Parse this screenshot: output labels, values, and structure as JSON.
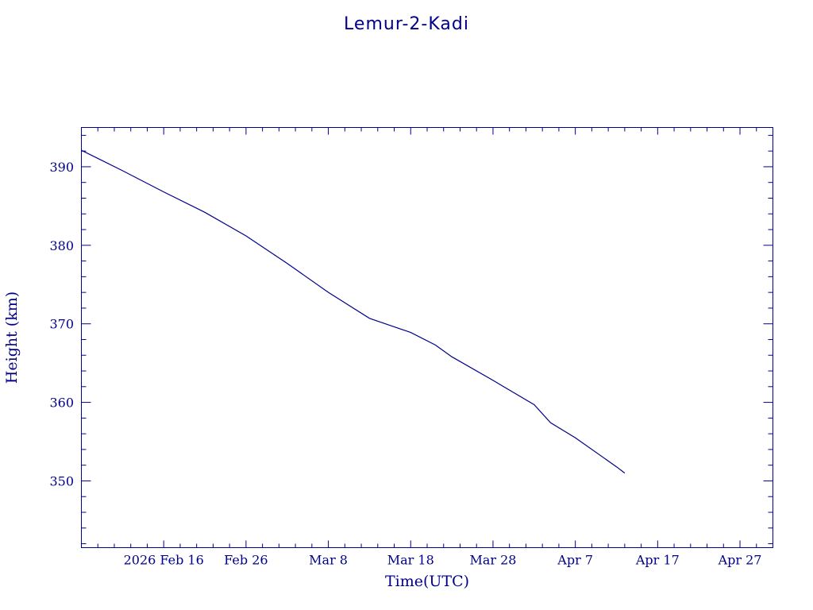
{
  "chart_data": {
    "type": "line",
    "title": "Lemur-2-Kadi",
    "xlabel": "Time(UTC)",
    "ylabel": "Height (km)",
    "x_start_date": "2026-02-06",
    "xlim": [
      "2026-02-06",
      "2026-05-01"
    ],
    "ylim": [
      341.5,
      395
    ],
    "x_tick_labels": [
      {
        "date": "2026-02-16",
        "label": "2026 Feb 16"
      },
      {
        "date": "2026-02-26",
        "label": "Feb 26"
      },
      {
        "date": "2026-03-08",
        "label": "Mar  8"
      },
      {
        "date": "2026-03-18",
        "label": "Mar 18"
      },
      {
        "date": "2026-03-28",
        "label": "Mar 28"
      },
      {
        "date": "2026-04-07",
        "label": "Apr  7"
      },
      {
        "date": "2026-04-17",
        "label": "Apr 17"
      },
      {
        "date": "2026-04-27",
        "label": "Apr 27"
      }
    ],
    "y_ticks": [
      350,
      360,
      370,
      380,
      390
    ],
    "grid": false,
    "series": [
      {
        "name": "",
        "color": "#00008b",
        "x": [
          "2026-02-06",
          "2026-02-11",
          "2026-02-16",
          "2026-02-21",
          "2026-02-26",
          "2026-03-03",
          "2026-03-08",
          "2026-03-13",
          "2026-03-18",
          "2026-03-21",
          "2026-03-23",
          "2026-03-28",
          "2026-04-02",
          "2026-04-04",
          "2026-04-07",
          "2026-04-12",
          "2026-04-13"
        ],
        "y": [
          392.1,
          389.5,
          386.8,
          384.2,
          381.2,
          377.7,
          374.0,
          370.7,
          368.9,
          367.3,
          365.8,
          362.8,
          359.7,
          357.4,
          355.5,
          351.8,
          351.0
        ]
      }
    ]
  }
}
